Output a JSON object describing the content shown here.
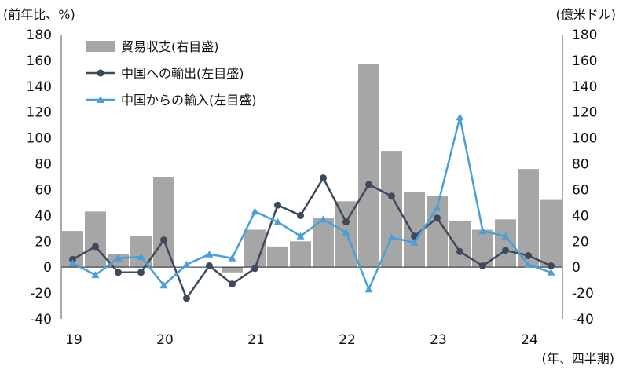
{
  "chart_data": {
    "type": "bar+line",
    "units": {
      "left": "(前年比、%)",
      "right": "(億米ドル)",
      "x": "(年、四半期)"
    },
    "y_left_range": [
      -40,
      180
    ],
    "y_right_range": [
      -40,
      180
    ],
    "y_ticks": [
      -40,
      -20,
      0,
      20,
      40,
      60,
      80,
      100,
      120,
      140,
      160,
      180
    ],
    "year_labels": [
      {
        "label": "19",
        "quarter_index": 0
      },
      {
        "label": "20",
        "quarter_index": 4
      },
      {
        "label": "21",
        "quarter_index": 8
      },
      {
        "label": "22",
        "quarter_index": 12
      },
      {
        "label": "23",
        "quarter_index": 16
      },
      {
        "label": "24",
        "quarter_index": 20
      }
    ],
    "colors": {
      "bar": "#a6a6a6",
      "export_line": "#3d4a5c",
      "import_line": "#4a9fd8",
      "axis": "#555555"
    },
    "series": [
      {
        "name": "貿易収支(右目盛)",
        "kind": "bar",
        "axis": "right",
        "values": [
          28,
          43,
          10,
          24,
          70,
          0,
          0,
          -4,
          29,
          16,
          20,
          38,
          51,
          157,
          90,
          58,
          55,
          36,
          29,
          37,
          76,
          52
        ]
      },
      {
        "name": "中国への輸出(左目盛)",
        "kind": "line",
        "marker": "circle",
        "axis": "left",
        "values": [
          6,
          16,
          -4,
          -4,
          21,
          -24,
          1,
          -13,
          -1,
          48,
          40,
          69,
          35,
          64,
          55,
          24,
          38,
          12,
          1,
          13,
          9,
          1
        ]
      },
      {
        "name": "中国からの輸入(左目盛)",
        "kind": "line",
        "marker": "triangle",
        "axis": "left",
        "values": [
          3,
          -6,
          7,
          8,
          -14,
          2,
          10,
          7,
          43,
          35,
          24,
          37,
          27,
          -17,
          23,
          19,
          46,
          116,
          28,
          24,
          2,
          -4
        ]
      }
    ]
  }
}
